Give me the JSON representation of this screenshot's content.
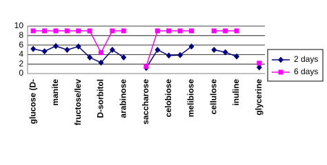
{
  "chart_data": {
    "type": "line",
    "categories": [
      "glucose (D-",
      null,
      "manite",
      null,
      "fructose/lev",
      null,
      "D-sorbitol",
      null,
      "arabinose",
      null,
      "saccharose",
      null,
      "celobiose",
      null,
      "melibiose",
      null,
      "cellulose",
      null,
      "inuline",
      null,
      "glycerine"
    ],
    "series": [
      {
        "name": "2 days",
        "color": "#000080",
        "marker": "diamond",
        "values": [
          5.2,
          4.7,
          5.8,
          5.0,
          5.7,
          3.4,
          2.3,
          5.0,
          3.4,
          null,
          1.2,
          5.0,
          3.8,
          3.9,
          5.7,
          null,
          5.0,
          4.5,
          3.6,
          null,
          1.3
        ]
      },
      {
        "name": "6 days",
        "color": "#ff00ff",
        "marker": "square",
        "values": [
          9,
          9,
          9,
          9,
          9,
          9,
          4.4,
          9,
          9,
          null,
          1.5,
          9,
          9,
          9,
          9,
          null,
          9,
          9,
          9,
          null,
          2.2
        ]
      }
    ],
    "ylim": [
      0,
      10
    ],
    "yticks": [
      0,
      2,
      4,
      6,
      8,
      10
    ],
    "grid": true,
    "legend": "right"
  }
}
